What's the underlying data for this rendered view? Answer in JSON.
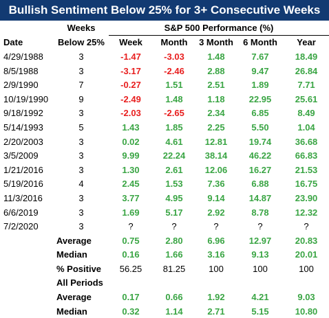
{
  "title": "Bullish Sentiment Below 25% for 3+ Consecutive Weeks",
  "colors": {
    "title_bg": "#123a72",
    "negative": "#e81e1e",
    "positive": "#3aa544"
  },
  "headers": {
    "weeks_top": "Weeks",
    "group": "S&P 500 Performance (%)",
    "date": "Date",
    "weeks_bottom": "Below 25%",
    "week": "Week",
    "month": "Month",
    "three_month": "3 Month",
    "six_month": "6 Month",
    "year": "Year"
  },
  "rows": [
    {
      "date": "4/29/1988",
      "weeks": "3",
      "week": "-1.47",
      "month": "-3.03",
      "m3": "1.48",
      "m6": "7.67",
      "year": "18.49"
    },
    {
      "date": "8/5/1988",
      "weeks": "3",
      "week": "-3.17",
      "month": "-2.46",
      "m3": "2.88",
      "m6": "9.47",
      "year": "26.84"
    },
    {
      "date": "2/9/1990",
      "weeks": "7",
      "week": "-0.27",
      "month": "1.51",
      "m3": "2.51",
      "m6": "1.89",
      "year": "7.71"
    },
    {
      "date": "10/19/1990",
      "weeks": "9",
      "week": "-2.49",
      "month": "1.48",
      "m3": "1.18",
      "m6": "22.95",
      "year": "25.61"
    },
    {
      "date": "9/18/1992",
      "weeks": "3",
      "week": "-2.03",
      "month": "-2.65",
      "m3": "2.34",
      "m6": "6.85",
      "year": "8.49"
    },
    {
      "date": "5/14/1993",
      "weeks": "5",
      "week": "1.43",
      "month": "1.85",
      "m3": "2.25",
      "m6": "5.50",
      "year": "1.04"
    },
    {
      "date": "2/20/2003",
      "weeks": "3",
      "week": "0.02",
      "month": "4.61",
      "m3": "12.81",
      "m6": "19.74",
      "year": "36.68"
    },
    {
      "date": "3/5/2009",
      "weeks": "3",
      "week": "9.99",
      "month": "22.24",
      "m3": "38.14",
      "m6": "46.22",
      "year": "66.83"
    },
    {
      "date": "1/21/2016",
      "weeks": "3",
      "week": "1.30",
      "month": "2.61",
      "m3": "12.06",
      "m6": "16.27",
      "year": "21.53"
    },
    {
      "date": "5/19/2016",
      "weeks": "4",
      "week": "2.45",
      "month": "1.53",
      "m3": "7.36",
      "m6": "6.88",
      "year": "16.75"
    },
    {
      "date": "11/3/2016",
      "weeks": "3",
      "week": "3.77",
      "month": "4.95",
      "m3": "9.14",
      "m6": "14.87",
      "year": "23.90"
    },
    {
      "date": "6/6/2019",
      "weeks": "3",
      "week": "1.69",
      "month": "5.17",
      "m3": "2.92",
      "m6": "8.78",
      "year": "12.32"
    },
    {
      "date": "7/2/2020",
      "weeks": "3",
      "week": "?",
      "month": "?",
      "m3": "?",
      "m6": "?",
      "year": "?"
    }
  ],
  "stats": [
    {
      "label": "Average",
      "week": "0.75",
      "month": "2.80",
      "m3": "6.96",
      "m6": "12.97",
      "year": "20.83"
    },
    {
      "label": "Median",
      "week": "0.16",
      "month": "1.66",
      "m3": "3.16",
      "m6": "9.13",
      "year": "20.01"
    },
    {
      "label": "% Positive",
      "week": "56.25",
      "month": "81.25",
      "m3": "100",
      "m6": "100",
      "year": "100"
    }
  ],
  "all_periods": {
    "label": "All Periods",
    "rows": [
      {
        "label": "Average",
        "week": "0.17",
        "month": "0.66",
        "m3": "1.92",
        "m6": "4.21",
        "year": "9.03"
      },
      {
        "label": "Median",
        "week": "0.32",
        "month": "1.14",
        "m3": "2.71",
        "m6": "5.15",
        "year": "10.80"
      }
    ]
  }
}
